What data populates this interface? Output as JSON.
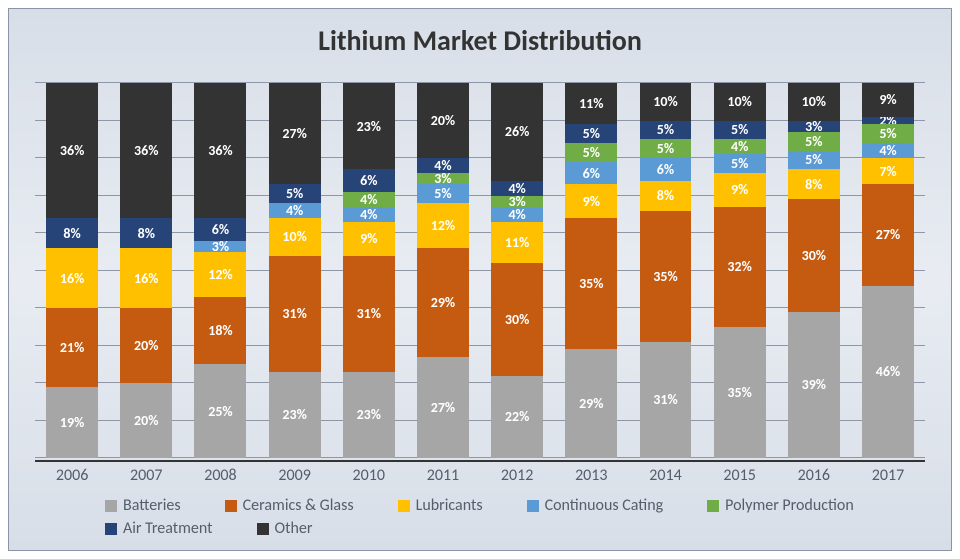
{
  "chart": {
    "type": "stacked-bar-100",
    "title": "Lithium Market Distribution",
    "title_fontsize": 28,
    "title_color": "#333333",
    "background_gradient": [
      "#d8dee8",
      "#e8ecf2",
      "#d8dee8"
    ],
    "border_color": "#8a94a6",
    "grid_color": "#8f97a6",
    "grid_steps": 10,
    "bar_width": 0.7,
    "label_fontsize": 14,
    "label_color": "#ffffff",
    "axis_label_fontsize": 16,
    "axis_label_color": "#555d6a",
    "categories": [
      "2006",
      "2007",
      "2008",
      "2009",
      "2010",
      "2011",
      "2012",
      "2013",
      "2014",
      "2015",
      "2016",
      "2017"
    ],
    "series": [
      {
        "name": "Batteries",
        "color": "#a6a6a6"
      },
      {
        "name": "Ceramics & Glass",
        "color": "#c55a11"
      },
      {
        "name": "Lubricants",
        "color": "#ffc000"
      },
      {
        "name": "Continuous Cating",
        "color": "#5b9bd5"
      },
      {
        "name": "Polymer Production",
        "color": "#70ad47"
      },
      {
        "name": "Air Treatment",
        "color": "#264478"
      },
      {
        "name": "Other",
        "color": "#333333"
      }
    ],
    "values": [
      [
        19,
        21,
        16,
        null,
        null,
        8,
        36
      ],
      [
        20,
        20,
        16,
        null,
        null,
        8,
        36
      ],
      [
        25,
        18,
        12,
        3,
        null,
        6,
        36
      ],
      [
        23,
        31,
        10,
        4,
        null,
        5,
        27
      ],
      [
        23,
        31,
        9,
        4,
        4,
        6,
        23
      ],
      [
        27,
        29,
        12,
        5,
        3,
        4,
        20
      ],
      [
        22,
        30,
        11,
        4,
        3,
        4,
        26
      ],
      [
        29,
        35,
        9,
        6,
        5,
        5,
        11
      ],
      [
        31,
        35,
        8,
        6,
        5,
        5,
        10
      ],
      [
        35,
        32,
        9,
        5,
        4,
        5,
        10
      ],
      [
        39,
        30,
        8,
        5,
        5,
        3,
        10
      ],
      [
        46,
        27,
        7,
        4,
        5,
        2,
        9
      ]
    ]
  }
}
